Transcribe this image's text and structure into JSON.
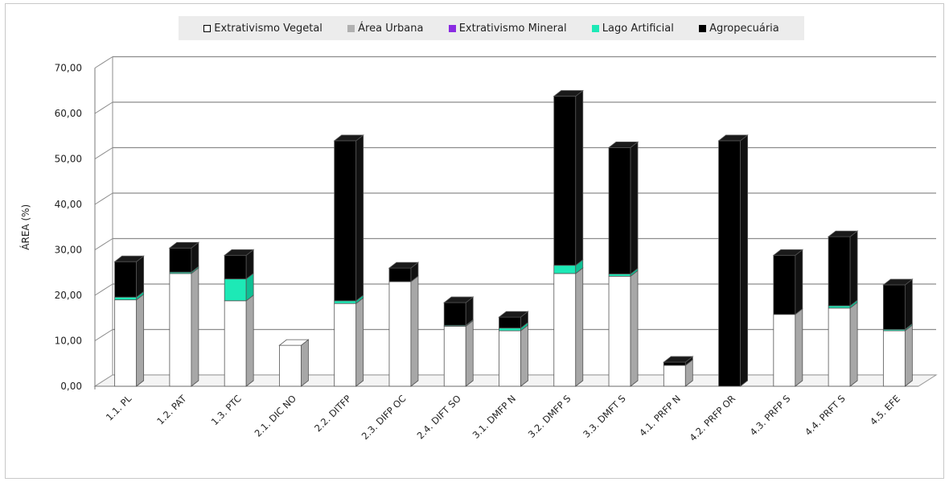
{
  "chart_data": {
    "type": "bar",
    "stacked": true,
    "three_d": true,
    "categories": [
      "1.1. PL",
      "1.2. PAT",
      "1.3. PTC",
      "2.1. DIC NO",
      "2.2. DITFP",
      "2.3. DIFP OC",
      "2.4. DIFT SO",
      "3.1. DMFP N",
      "3.2. DMFP S",
      "3.3. DMFT S",
      "4.1. PRFP N",
      "4.2. PRFP OR",
      "4.3. PRFP S",
      "4.4. PRFT S",
      "4.5. EFE"
    ],
    "series": [
      {
        "name": "Extrativismo Vegetal",
        "color": "#ffffff",
        "values": [
          19.0,
          24.8,
          18.8,
          9.0,
          18.2,
          23.0,
          13.2,
          12.2,
          24.8,
          24.2,
          4.6,
          0.0,
          15.8,
          17.2,
          12.2
        ]
      },
      {
        "name": "Área Urbana",
        "color": "#b0b0b0",
        "values": [
          0,
          0,
          0,
          0,
          0,
          0,
          0,
          0,
          0,
          0,
          0,
          0,
          0,
          0,
          0
        ]
      },
      {
        "name": "Extrativismo Mineral",
        "color": "#8a2be2",
        "values": [
          0,
          0,
          0,
          0,
          0,
          0,
          0,
          0,
          0,
          0,
          0,
          0,
          0,
          0,
          0
        ]
      },
      {
        "name": "Lago Artificial",
        "color": "#1de9b6",
        "values": [
          0.6,
          0.3,
          4.8,
          0,
          0.6,
          0,
          0.2,
          0.6,
          1.8,
          0.5,
          0,
          0,
          0,
          0.5,
          0.3
        ]
      },
      {
        "name": "Agropecuária",
        "color": "#000000",
        "values": [
          7.8,
          5.3,
          5.2,
          0,
          35.2,
          3.0,
          5.0,
          2.4,
          37.2,
          27.8,
          0.7,
          54.0,
          13.0,
          15.2,
          9.8
        ]
      }
    ],
    "ylabel": "ÁREA (%)",
    "ylim": [
      0,
      70
    ],
    "yticks": [
      "0,00",
      "10,00",
      "20,00",
      "30,00",
      "40,00",
      "50,00",
      "60,00",
      "70,00"
    ],
    "grid": true,
    "legend_position": "top"
  }
}
